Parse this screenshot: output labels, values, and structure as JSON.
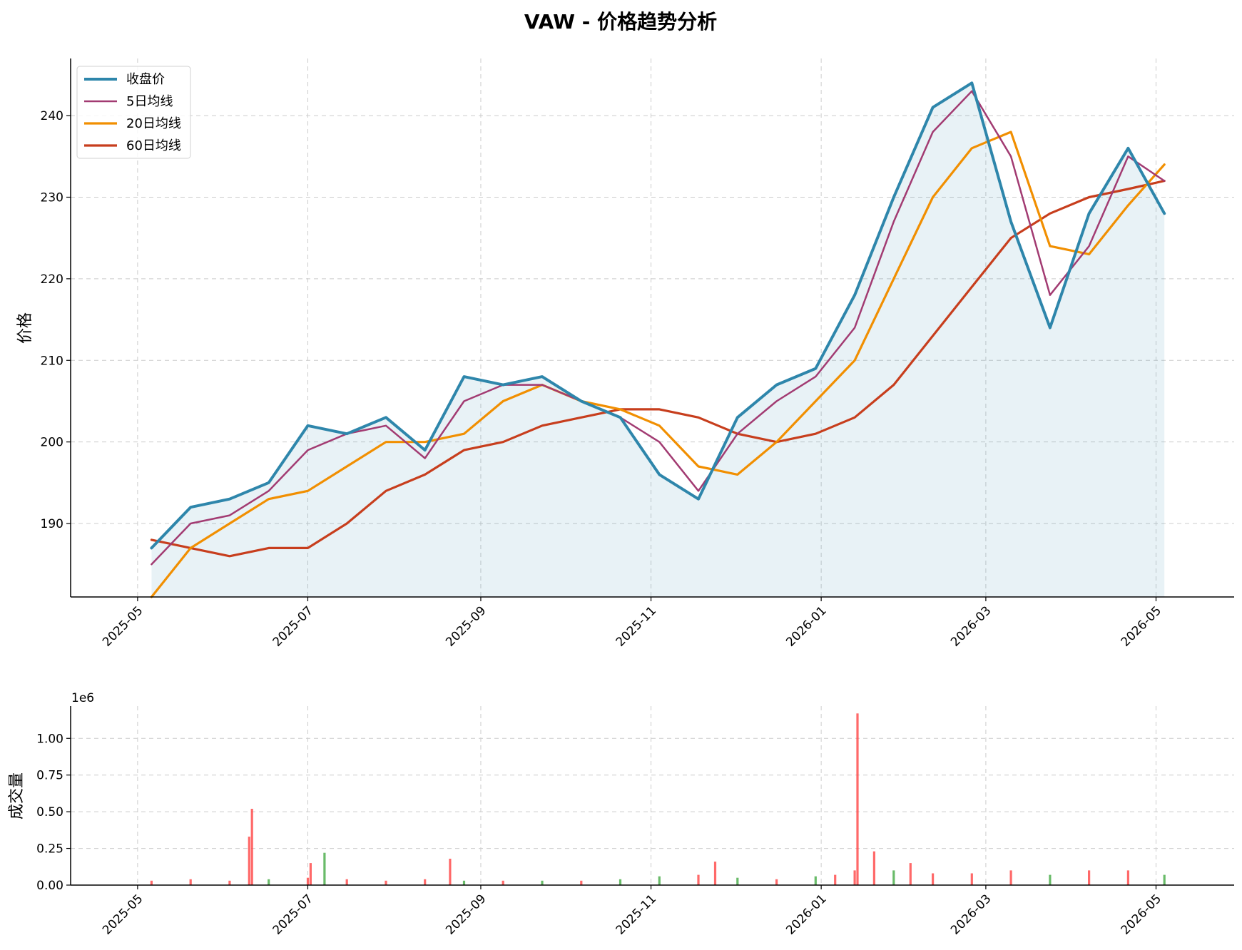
{
  "chart_data": [
    {
      "type": "line",
      "title": "VAW - 价格趋势分析",
      "ylabel": "价格",
      "xlabel": "",
      "x_ticks": [
        "2025-05",
        "2025-07",
        "2025-09",
        "2025-11",
        "2026-01",
        "2026-03",
        "2026-05"
      ],
      "y_ticks": [
        190,
        200,
        210,
        220,
        230,
        240
      ],
      "xlim": [
        "2025-04-07",
        "2026-05-29"
      ],
      "ylim": [
        181,
        247
      ],
      "grid": true,
      "legend_position": "top-left",
      "dates": [
        "2025-05-06",
        "2025-05-20",
        "2025-06-03",
        "2025-06-17",
        "2025-07-01",
        "2025-07-15",
        "2025-07-29",
        "2025-08-12",
        "2025-08-26",
        "2025-09-09",
        "2025-09-23",
        "2025-10-07",
        "2025-10-21",
        "2025-11-04",
        "2025-11-18",
        "2025-12-02",
        "2025-12-16",
        "2025-12-30",
        "2026-01-13",
        "2026-01-27",
        "2026-02-10",
        "2026-02-24",
        "2026-03-10",
        "2026-03-24",
        "2026-04-07",
        "2026-04-21",
        "2026-05-04"
      ],
      "series": [
        {
          "name": "收盘价",
          "color": "#2E86AB",
          "values": [
            187,
            192,
            193,
            195,
            202,
            201,
            203,
            199,
            208,
            207,
            208,
            205,
            203,
            196,
            193,
            203,
            207,
            209,
            218,
            230,
            241,
            244,
            227,
            214,
            228,
            236,
            228
          ]
        },
        {
          "name": "5日均线",
          "color": "#A23B72",
          "values": [
            185,
            190,
            191,
            194,
            199,
            201,
            202,
            198,
            205,
            207,
            207,
            205,
            203,
            200,
            194,
            201,
            205,
            208,
            214,
            227,
            238,
            243,
            235,
            218,
            224,
            235,
            232
          ]
        },
        {
          "name": "20日均线",
          "color": "#F18F01",
          "values": [
            181,
            187,
            190,
            193,
            194,
            197,
            200,
            200,
            201,
            205,
            207,
            205,
            204,
            202,
            197,
            196,
            200,
            205,
            210,
            220,
            230,
            236,
            238,
            224,
            223,
            229,
            234
          ]
        },
        {
          "name": "60日均线",
          "color": "#C73E1D",
          "values": [
            188,
            187,
            186,
            187,
            187,
            190,
            194,
            196,
            199,
            200,
            202,
            203,
            204,
            204,
            203,
            201,
            200,
            201,
            203,
            207,
            213,
            219,
            225,
            228,
            230,
            231,
            232
          ]
        }
      ]
    },
    {
      "type": "bar",
      "title": "",
      "ylabel": "成交量",
      "scale_label": "1e6",
      "x_ticks": [
        "2025-05",
        "2025-07",
        "2025-09",
        "2025-11",
        "2026-01",
        "2026-03",
        "2026-05"
      ],
      "y_ticks": [
        "0.00",
        "0.25",
        "0.50",
        "0.75",
        "1.00"
      ],
      "ylim": [
        0,
        1.22
      ],
      "up_color": "#FF4444",
      "down_color": "#44AA44",
      "dates": [
        "2025-05-06",
        "2025-05-20",
        "2025-06-03",
        "2025-06-10",
        "2025-06-11",
        "2025-06-17",
        "2025-07-01",
        "2025-07-02",
        "2025-07-07",
        "2025-07-15",
        "2025-07-29",
        "2025-08-12",
        "2025-08-21",
        "2025-08-26",
        "2025-09-09",
        "2025-09-23",
        "2025-10-07",
        "2025-10-21",
        "2025-11-04",
        "2025-11-18",
        "2025-11-24",
        "2025-12-02",
        "2025-12-16",
        "2025-12-30",
        "2026-01-06",
        "2026-01-13",
        "2026-01-14",
        "2026-01-20",
        "2026-01-27",
        "2026-02-02",
        "2026-02-10",
        "2026-02-24",
        "2026-03-10",
        "2026-03-24",
        "2026-04-07",
        "2026-04-21",
        "2026-05-04"
      ],
      "values": [
        0.03,
        0.04,
        0.03,
        0.33,
        0.52,
        0.04,
        0.05,
        0.15,
        0.22,
        0.04,
        0.03,
        0.04,
        0.18,
        0.03,
        0.03,
        0.03,
        0.03,
        0.04,
        0.06,
        0.07,
        0.16,
        0.05,
        0.04,
        0.06,
        0.07,
        0.1,
        1.17,
        0.23,
        0.1,
        0.15,
        0.08,
        0.08,
        0.1,
        0.07,
        0.1,
        0.1,
        0.07
      ],
      "direction": [
        "up",
        "up",
        "up",
        "up",
        "up",
        "down",
        "up",
        "up",
        "down",
        "up",
        "up",
        "up",
        "up",
        "down",
        "up",
        "down",
        "up",
        "down",
        "down",
        "up",
        "up",
        "down",
        "up",
        "down",
        "up",
        "up",
        "up",
        "up",
        "down",
        "up",
        "up",
        "up",
        "up",
        "down",
        "up",
        "up",
        "down"
      ]
    }
  ]
}
